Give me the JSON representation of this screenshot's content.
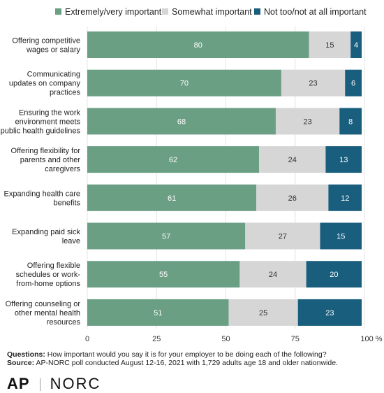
{
  "chart_data": {
    "type": "bar",
    "orientation": "horizontal",
    "stacked": true,
    "categories": [
      [
        "Offering competitive",
        "wages or salary"
      ],
      [
        "Communicating",
        "updates on company",
        "practices"
      ],
      [
        "Ensuring the work",
        "environment meets",
        "public health guidelines"
      ],
      [
        "Offering flexibility for",
        "parents and other",
        "caregivers"
      ],
      [
        "Expanding health care",
        "benefits"
      ],
      [
        "Expanding paid sick",
        "leave"
      ],
      [
        "Offering flexible",
        "schedules or work-",
        "from-home options"
      ],
      [
        "Offering counseling or",
        "other mental health",
        "resources"
      ]
    ],
    "series": [
      {
        "name": "Extremely/very important",
        "color": "#6a9f84",
        "values": [
          80,
          70,
          68,
          62,
          61,
          57,
          55,
          51
        ]
      },
      {
        "name": "Somewhat important",
        "color": "#d6d6d6",
        "values": [
          15,
          23,
          23,
          24,
          26,
          27,
          24,
          25
        ]
      },
      {
        "name": "Not too/not at all important",
        "color": "#1a5e7e",
        "values": [
          4,
          6,
          8,
          13,
          12,
          15,
          20,
          23
        ]
      }
    ],
    "xlim": [
      0,
      100
    ],
    "xticks": [
      "0",
      "25",
      "50",
      "75",
      "100 %"
    ],
    "legend_position": "top"
  },
  "footer": {
    "questions_label": "Questions:",
    "questions_text": "How important would you say it is for your employer to be doing each of the following?",
    "source_label": "Source:",
    "source_text": "AP-NORC poll conducted August 12-16, 2021 with 1,729 adults age 18 and older nationwide."
  },
  "logos": {
    "ap": "AP",
    "norc": "NORC"
  }
}
